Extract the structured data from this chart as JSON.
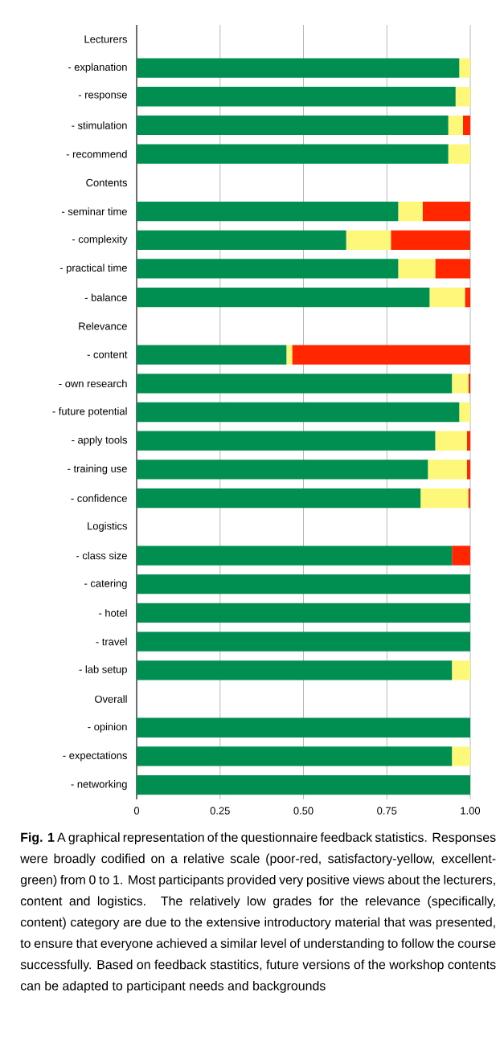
{
  "chart_data": {
    "type": "bar",
    "orientation": "horizontal",
    "stacked": true,
    "grid": "x",
    "categories": [
      "Lecturers",
      "- explanation",
      "- response",
      "- stimulation",
      "- recommend",
      "Contents",
      "- seminar time",
      "- complexity",
      "- practical time",
      "- balance",
      "Relevance",
      "- content",
      "- own research",
      "- future potential",
      "- apply tools",
      "- training use",
      "- confidence",
      "Logistics",
      "- class size",
      "- catering",
      "- hotel",
      "- travel",
      "- lab setup",
      "Overall",
      "- opinion",
      "- expectations",
      "- networking"
    ],
    "series": [
      {
        "color": "#008f50",
        "values": [
          null,
          0.967,
          0.956,
          0.934,
          0.934,
          null,
          0.784,
          0.628,
          0.784,
          0.878,
          null,
          0.449,
          0.945,
          0.967,
          0.895,
          0.873,
          0.851,
          null,
          0.945,
          1.0,
          1.0,
          1.0,
          0.945,
          null,
          1.0,
          0.945,
          1.0
        ]
      },
      {
        "color": "#fdf87a",
        "values": [
          null,
          0.033,
          0.044,
          0.044,
          0.066,
          null,
          0.073,
          0.134,
          0.111,
          0.106,
          null,
          0.017,
          0.05,
          0.033,
          0.095,
          0.117,
          0.143,
          null,
          null,
          null,
          null,
          null,
          0.055,
          null,
          null,
          0.055,
          null
        ]
      },
      {
        "color": "#ff2600",
        "values": [
          null,
          null,
          null,
          0.022,
          null,
          null,
          0.143,
          0.238,
          0.105,
          0.016,
          null,
          0.534,
          0.005,
          null,
          0.01,
          0.01,
          0.006,
          null,
          0.055,
          null,
          null,
          null,
          null,
          null,
          null,
          null,
          null
        ]
      }
    ],
    "xlim": [
      0,
      1.0
    ],
    "xticks": [
      0,
      0.25,
      {
        "value": 0.5,
        "label": "0.50"
      },
      0.75,
      {
        "value": 1.0,
        "label": "1.00"
      }
    ],
    "annotations": [
      "**Fig. 1** A graphical representation of the questionnaire feedback statistics. Responses were broadly codified on a relative scale (poor-red, satisfactory-yellow, excellent-green) from 0 to 1. Most participants provided very positive views about the lecturers, content and logistics. The relatively low grades for the relevance (specifically, content) category are due to the extensive introductory material that was presented, to ensure that everyone achieved a similar level of understanding to follow the course successfully. Based on feedback stastitics, future versions of the workshop contents can be adapted to participant needs and backgrounds"
    ]
  }
}
